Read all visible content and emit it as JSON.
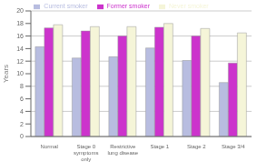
{
  "chart_data": {
    "type": "bar",
    "categories": [
      "Normal",
      "Stage 0\nsymptoms\nonly",
      "Restrictive\nlung disease",
      "Stage 1",
      "Stage 2",
      "Stage 3/4"
    ],
    "series": [
      {
        "name": "Current smoker",
        "color": "#b8bde0",
        "values": [
          14.3,
          12.5,
          12.7,
          14.1,
          12.1,
          8.6
        ]
      },
      {
        "name": "Former smoker",
        "color": "#cc33cc",
        "values": [
          17.3,
          16.8,
          16.0,
          17.4,
          16.0,
          11.7
        ]
      },
      {
        "name": "Never smoker",
        "color": "#f5f5d8",
        "values": [
          17.8,
          17.5,
          17.5,
          18.0,
          17.2,
          16.5
        ]
      }
    ],
    "ylabel": "Years",
    "ylim": [
      0,
      20
    ],
    "yticks": [
      0,
      2,
      4,
      6,
      8,
      10,
      12,
      14,
      16,
      18,
      20
    ],
    "grid": true,
    "legend": "top"
  }
}
